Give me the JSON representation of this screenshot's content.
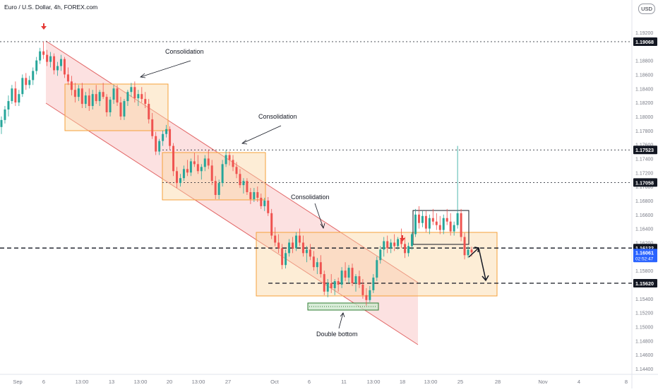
{
  "header": {
    "symbol_title": "Euro / U.S. Dollar, 4h, FOREX.com",
    "currency_button": "USD"
  },
  "colors": {
    "channel_fill": "#f7a8a8",
    "channel_line": "#e26767",
    "box_fill": "#fbd7a3",
    "box_line": "#f5a13b",
    "candle_up": "#26a69a",
    "candle_down": "#ef5350",
    "price_tag_bg": "#131722",
    "current_price_bg": "#2962ff",
    "arrow_red": "#e53935",
    "support_box_fill": "#cfe8cf",
    "support_box_line": "#2e7d32"
  },
  "chart_data": {
    "type": "candlestick",
    "symbol": "Euro / U.S. Dollar",
    "interval": "4h",
    "source": "FOREX.com",
    "price_axis": {
      "ticks": [
        "1.19200",
        "1.18800",
        "1.18600",
        "1.18400",
        "1.18200",
        "1.18000",
        "1.17800",
        "1.17600",
        "1.17400",
        "1.17200",
        "1.17000",
        "1.16800",
        "1.16600",
        "1.16400",
        "1.16200",
        "1.15800",
        "1.15600",
        "1.15400",
        "1.15200",
        "1.15000",
        "1.14800",
        "1.14600",
        "1.14400"
      ],
      "ylim": [
        1.1425,
        1.1965
      ]
    },
    "time_axis": {
      "labels": [
        "Sep",
        "6",
        "13:00",
        "13",
        "13:00",
        "20",
        "13:00",
        "27",
        "Oct",
        "6",
        "11",
        "13:00",
        "18",
        "13:00",
        "25",
        "28",
        "Nov",
        "4",
        "8"
      ]
    },
    "horizontal_levels": [
      {
        "price": 1.19068,
        "label": "1.19068",
        "style": "dotted"
      },
      {
        "price": 1.17523,
        "label": "1.17523",
        "style": "dotted"
      },
      {
        "price": 1.17058,
        "label": "1.17058",
        "style": "dotted"
      },
      {
        "price": 1.16122,
        "label": "1.16122",
        "style": "dashed"
      },
      {
        "price": 1.1562,
        "label": "1.15620",
        "style": "dashed"
      }
    ],
    "current_price": {
      "price": "1.16061",
      "countdown": "02:52:47"
    },
    "annotations": [
      {
        "text": "Consolidation"
      },
      {
        "text": "Consolidation"
      },
      {
        "text": "Consolidation"
      },
      {
        "text": "Double bottom"
      }
    ],
    "candles": [
      [
        1.1785,
        1.18,
        1.1775,
        1.1795
      ],
      [
        1.1795,
        1.1815,
        1.179,
        1.181
      ],
      [
        1.181,
        1.183,
        1.18,
        1.1822
      ],
      [
        1.1822,
        1.1845,
        1.1818,
        1.184
      ],
      [
        1.184,
        1.185,
        1.1815,
        1.182
      ],
      [
        1.182,
        1.1838,
        1.1815,
        1.1832
      ],
      [
        1.1832,
        1.186,
        1.1828,
        1.1855
      ],
      [
        1.1855,
        1.1862,
        1.1838,
        1.1845
      ],
      [
        1.1845,
        1.1858,
        1.184,
        1.1852
      ],
      [
        1.1852,
        1.187,
        1.1845,
        1.1865
      ],
      [
        1.1865,
        1.1885,
        1.186,
        1.188
      ],
      [
        1.188,
        1.1898,
        1.1875,
        1.1893
      ],
      [
        1.1893,
        1.1907,
        1.1882,
        1.1888
      ],
      [
        1.1888,
        1.1895,
        1.1872,
        1.1878
      ],
      [
        1.1878,
        1.1892,
        1.187,
        1.1886
      ],
      [
        1.1886,
        1.189,
        1.186,
        1.1866
      ],
      [
        1.1866,
        1.1878,
        1.1858,
        1.1872
      ],
      [
        1.1872,
        1.1888,
        1.1865,
        1.1882
      ],
      [
        1.1882,
        1.1885,
        1.1855,
        1.186
      ],
      [
        1.186,
        1.187,
        1.1845,
        1.185
      ],
      [
        1.185,
        1.1858,
        1.183,
        1.1838
      ],
      [
        1.1838,
        1.1848,
        1.182,
        1.1828
      ],
      [
        1.1828,
        1.1845,
        1.1822,
        1.184
      ],
      [
        1.184,
        1.1848,
        1.1812,
        1.1818
      ],
      [
        1.1818,
        1.1835,
        1.1812,
        1.183
      ],
      [
        1.183,
        1.184,
        1.1808,
        1.1815
      ],
      [
        1.1815,
        1.1838,
        1.181,
        1.1832
      ],
      [
        1.1832,
        1.1845,
        1.1818,
        1.1822
      ],
      [
        1.1822,
        1.1838,
        1.1815,
        1.1835
      ],
      [
        1.1835,
        1.1848,
        1.1825,
        1.1828
      ],
      [
        1.1828,
        1.1832,
        1.18,
        1.1806
      ],
      [
        1.1806,
        1.1828,
        1.18,
        1.1824
      ],
      [
        1.1824,
        1.1845,
        1.1818,
        1.184
      ],
      [
        1.184,
        1.1845,
        1.1815,
        1.182
      ],
      [
        1.182,
        1.1828,
        1.1795,
        1.18
      ],
      [
        1.18,
        1.1825,
        1.1795,
        1.1822
      ],
      [
        1.1822,
        1.1838,
        1.1815,
        1.1835
      ],
      [
        1.1835,
        1.1848,
        1.1828,
        1.1842
      ],
      [
        1.1842,
        1.185,
        1.182,
        1.1826
      ],
      [
        1.1826,
        1.1838,
        1.1815,
        1.1832
      ],
      [
        1.1832,
        1.1842,
        1.182,
        1.1825
      ],
      [
        1.1825,
        1.1835,
        1.1812,
        1.1818
      ],
      [
        1.1818,
        1.1825,
        1.179,
        1.1796
      ],
      [
        1.1796,
        1.1805,
        1.1768,
        1.1772
      ],
      [
        1.1772,
        1.1778,
        1.1745,
        1.175
      ],
      [
        1.175,
        1.1768,
        1.1745,
        1.1765
      ],
      [
        1.1765,
        1.178,
        1.1758,
        1.1775
      ],
      [
        1.1775,
        1.1788,
        1.177,
        1.1782
      ],
      [
        1.1782,
        1.1786,
        1.1752,
        1.1758
      ],
      [
        1.1758,
        1.1762,
        1.1715,
        1.1722
      ],
      [
        1.1722,
        1.1728,
        1.1698,
        1.1705
      ],
      [
        1.1705,
        1.1718,
        1.17,
        1.1712
      ],
      [
        1.1712,
        1.173,
        1.1708,
        1.1725
      ],
      [
        1.1725,
        1.1738,
        1.1715,
        1.172
      ],
      [
        1.172,
        1.174,
        1.1715,
        1.1736
      ],
      [
        1.1736,
        1.1748,
        1.1728,
        1.1732
      ],
      [
        1.1732,
        1.1745,
        1.1718,
        1.1722
      ],
      [
        1.1722,
        1.1732,
        1.171,
        1.1728
      ],
      [
        1.1728,
        1.1745,
        1.1722,
        1.174
      ],
      [
        1.174,
        1.1752,
        1.1725,
        1.173
      ],
      [
        1.173,
        1.1738,
        1.1702,
        1.1708
      ],
      [
        1.1708,
        1.1715,
        1.1682,
        1.1688
      ],
      [
        1.1688,
        1.171,
        1.1682,
        1.1705
      ],
      [
        1.1705,
        1.1738,
        1.17,
        1.1732
      ],
      [
        1.1732,
        1.1752,
        1.1728,
        1.1745
      ],
      [
        1.1745,
        1.175,
        1.173,
        1.1738
      ],
      [
        1.1738,
        1.1745,
        1.1722,
        1.1728
      ],
      [
        1.1728,
        1.1735,
        1.1712,
        1.1718
      ],
      [
        1.1718,
        1.1725,
        1.1698,
        1.1702
      ],
      [
        1.1702,
        1.1712,
        1.169,
        1.1708
      ],
      [
        1.1708,
        1.1712,
        1.1688,
        1.1692
      ],
      [
        1.1692,
        1.1698,
        1.1675,
        1.1682
      ],
      [
        1.1682,
        1.1698,
        1.1678,
        1.1692
      ],
      [
        1.1692,
        1.17,
        1.1678,
        1.1684
      ],
      [
        1.1684,
        1.169,
        1.1668,
        1.1672
      ],
      [
        1.1672,
        1.1684,
        1.1665,
        1.168
      ],
      [
        1.168,
        1.1685,
        1.1658,
        1.1662
      ],
      [
        1.1662,
        1.1668,
        1.1625,
        1.163
      ],
      [
        1.163,
        1.1642,
        1.1615,
        1.162
      ],
      [
        1.162,
        1.1632,
        1.1605,
        1.1612
      ],
      [
        1.1612,
        1.1618,
        1.1582,
        1.1588
      ],
      [
        1.1588,
        1.161,
        1.1583,
        1.1605
      ],
      [
        1.1605,
        1.1625,
        1.16,
        1.162
      ],
      [
        1.162,
        1.1628,
        1.1605,
        1.1612
      ],
      [
        1.1612,
        1.1635,
        1.1608,
        1.163
      ],
      [
        1.163,
        1.164,
        1.1615,
        1.162
      ],
      [
        1.162,
        1.163,
        1.16,
        1.1605
      ],
      [
        1.1605,
        1.1615,
        1.1592,
        1.161
      ],
      [
        1.161,
        1.1618,
        1.1595,
        1.16
      ],
      [
        1.16,
        1.1608,
        1.158,
        1.1585
      ],
      [
        1.1585,
        1.1598,
        1.1575,
        1.1592
      ],
      [
        1.1592,
        1.1602,
        1.157,
        1.1575
      ],
      [
        1.1575,
        1.158,
        1.1545,
        1.155
      ],
      [
        1.155,
        1.1568,
        1.1542,
        1.1562
      ],
      [
        1.1562,
        1.1575,
        1.1548,
        1.1555
      ],
      [
        1.1555,
        1.1568,
        1.1545,
        1.1565
      ],
      [
        1.1565,
        1.157,
        1.155,
        1.156
      ],
      [
        1.156,
        1.1585,
        1.1555,
        1.158
      ],
      [
        1.158,
        1.1592,
        1.1565,
        1.157
      ],
      [
        1.157,
        1.1588,
        1.1562,
        1.1584
      ],
      [
        1.1584,
        1.159,
        1.1558,
        1.1562
      ],
      [
        1.1562,
        1.1575,
        1.155,
        1.1572
      ],
      [
        1.1572,
        1.158,
        1.1555,
        1.156
      ],
      [
        1.156,
        1.1568,
        1.154,
        1.1545
      ],
      [
        1.1545,
        1.1555,
        1.153,
        1.1538
      ],
      [
        1.1538,
        1.1558,
        1.1535,
        1.1552
      ],
      [
        1.1552,
        1.1575,
        1.1548,
        1.157
      ],
      [
        1.157,
        1.16,
        1.1565,
        1.1595
      ],
      [
        1.1595,
        1.1615,
        1.159,
        1.161
      ],
      [
        1.161,
        1.1628,
        1.16,
        1.1622
      ],
      [
        1.1622,
        1.163,
        1.1605,
        1.1612
      ],
      [
        1.1612,
        1.1625,
        1.1605,
        1.162
      ],
      [
        1.162,
        1.1632,
        1.1608,
        1.1615
      ],
      [
        1.1615,
        1.1628,
        1.161,
        1.1625
      ],
      [
        1.1625,
        1.164,
        1.1612,
        1.1618
      ],
      [
        1.1618,
        1.1628,
        1.1598,
        1.1605
      ],
      [
        1.1605,
        1.162,
        1.16,
        1.1615
      ],
      [
        1.1615,
        1.1635,
        1.161,
        1.1632
      ],
      [
        1.1632,
        1.1668,
        1.1628,
        1.166
      ],
      [
        1.166,
        1.1672,
        1.164,
        1.1648
      ],
      [
        1.1648,
        1.1665,
        1.1642,
        1.1658
      ],
      [
        1.1658,
        1.1665,
        1.1635,
        1.164
      ],
      [
        1.164,
        1.166,
        1.1632,
        1.1655
      ],
      [
        1.1655,
        1.1668,
        1.1645,
        1.165
      ],
      [
        1.165,
        1.1662,
        1.1638,
        1.1645
      ],
      [
        1.1645,
        1.1658,
        1.1632,
        1.1638
      ],
      [
        1.1638,
        1.166,
        1.1632,
        1.1655
      ],
      [
        1.1655,
        1.1668,
        1.1645,
        1.165
      ],
      [
        1.165,
        1.1662,
        1.163,
        1.1636
      ],
      [
        1.1636,
        1.165,
        1.163,
        1.1645
      ],
      [
        1.1645,
        1.1758,
        1.164,
        1.1662
      ],
      [
        1.1662,
        1.1668,
        1.1622,
        1.1628
      ],
      [
        1.1628,
        1.1634,
        1.1596,
        1.1602
      ],
      [
        1.1602,
        1.1615,
        1.1598,
        1.161
      ],
      [
        1.161,
        1.1614,
        1.16,
        1.1606
      ]
    ]
  }
}
